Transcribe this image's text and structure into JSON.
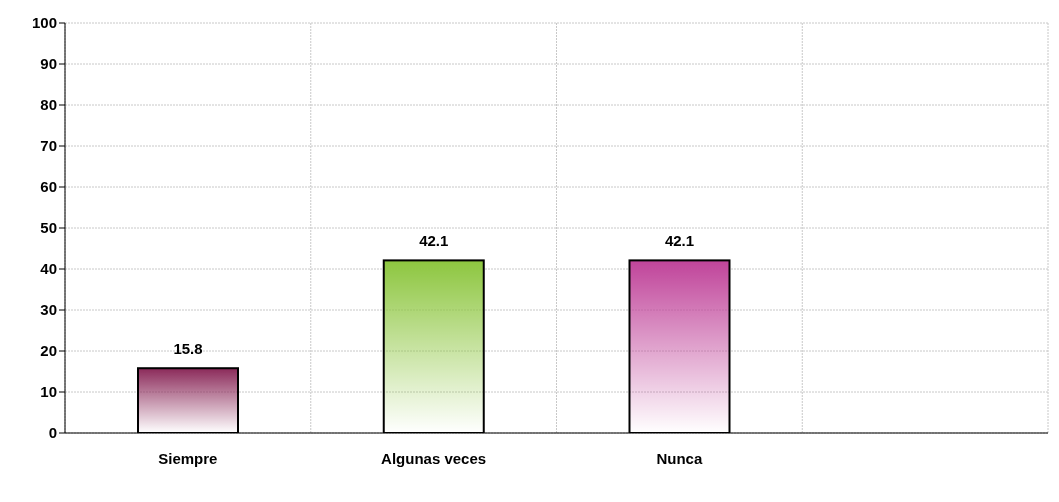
{
  "chart_data": {
    "type": "bar",
    "categories": [
      "Siempre",
      "Algunas veces",
      "Nunca",
      null
    ],
    "values": [
      15.8,
      42.1,
      42.1,
      null
    ],
    "colors": [
      "#8b2a5a",
      "#8dc63f",
      "#c0449a",
      "#8b2a5a"
    ],
    "ylim": [
      0,
      100
    ],
    "yticks": [
      0,
      10,
      20,
      30,
      40,
      50,
      60,
      70,
      80,
      90,
      100
    ],
    "grid": true,
    "data_labels": true
  }
}
